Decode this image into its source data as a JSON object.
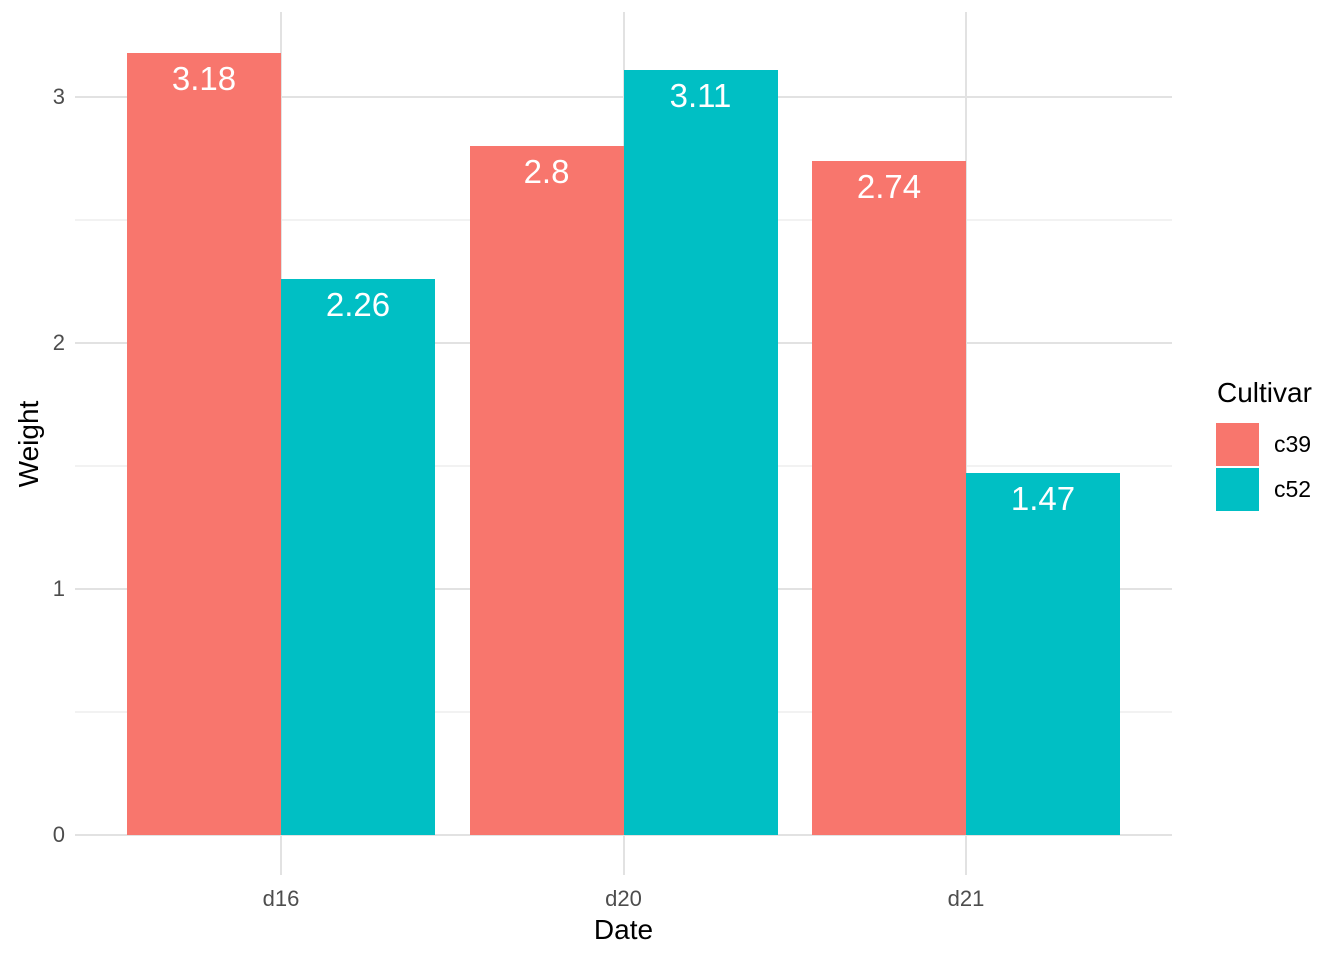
{
  "chart_data": {
    "type": "bar",
    "title": "",
    "xlabel": "Date",
    "ylabel": "Weight",
    "categories": [
      "d16",
      "d20",
      "d21"
    ],
    "series": [
      {
        "name": "c39",
        "color": "#F8766D",
        "values": [
          3.18,
          2.8,
          2.74
        ],
        "labels": [
          "3.18",
          "2.8",
          "2.74"
        ]
      },
      {
        "name": "c52",
        "color": "#00BFC4",
        "values": [
          2.26,
          3.11,
          1.47
        ],
        "labels": [
          "2.26",
          "3.11",
          "1.47"
        ]
      }
    ],
    "ylim": [
      0,
      3.35
    ],
    "y_major_ticks": [
      0,
      1,
      2,
      3
    ],
    "y_minor_ticks": [
      0.5,
      1.5,
      2.5
    ],
    "y_tick_labels": [
      "0",
      "1",
      "2",
      "3"
    ],
    "legend": {
      "title": "Cultivar",
      "position": "right"
    },
    "grid": "major+minor",
    "bar_label_color": "#FFFFFF",
    "colors": {
      "background": "#FFFFFF",
      "grid_major": "#E2E2E2",
      "grid_minor": "#F2F2F2",
      "tick_label": "#4D4D4D",
      "axis_title": "#000000"
    }
  }
}
